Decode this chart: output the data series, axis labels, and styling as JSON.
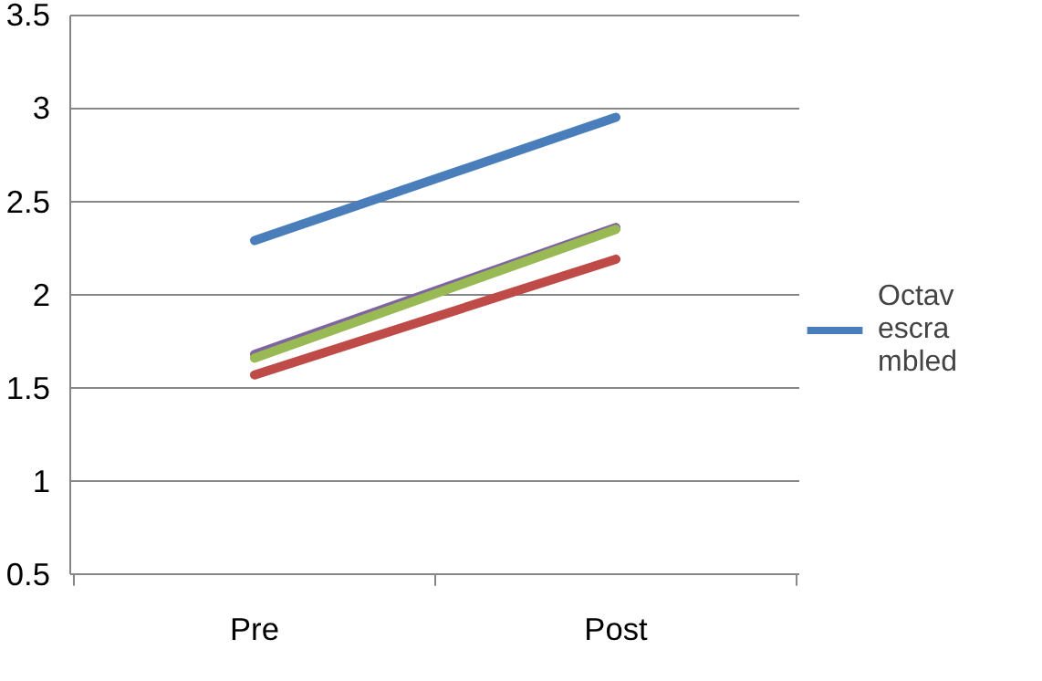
{
  "chart_data": {
    "type": "line",
    "categories": [
      "Pre",
      "Post"
    ],
    "series": [
      {
        "name": "Octavescrambled",
        "color": "#4a7ebb",
        "values": [
          2.29,
          2.95
        ]
      },
      {
        "color": "#8064a2",
        "values": [
          1.68,
          2.36
        ]
      },
      {
        "color": "#98b954",
        "values": [
          1.66,
          2.35
        ]
      },
      {
        "color": "#be4b48",
        "values": [
          1.57,
          2.19
        ]
      }
    ],
    "ylim": [
      0.5,
      3.5
    ],
    "yticks": [
      0.5,
      1,
      1.5,
      2,
      2.5,
      3,
      3.5
    ],
    "grid": "y",
    "legend": "right",
    "marker": "none",
    "line_style": "solid"
  }
}
